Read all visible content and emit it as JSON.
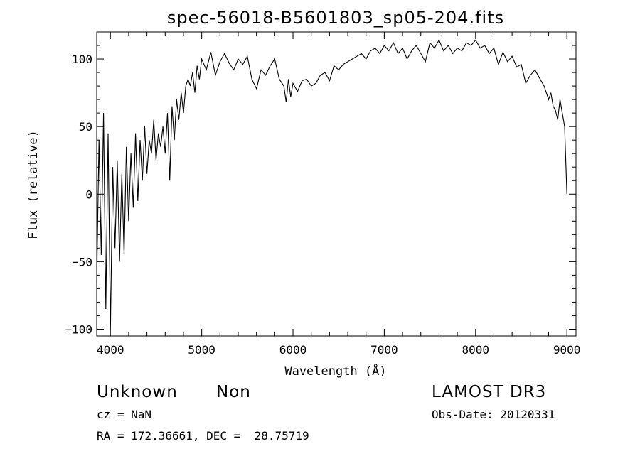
{
  "chart_data": {
    "type": "line",
    "title": "spec-56018-B5601803_sp05-204.fits",
    "xlabel": "Wavelength (Å)",
    "ylabel": "Flux (relative)",
    "xlim": [
      3850,
      9100
    ],
    "ylim": [
      -105,
      120
    ],
    "xticks": [
      4000,
      5000,
      6000,
      7000,
      8000,
      9000
    ],
    "yticks": [
      -100,
      -50,
      0,
      50,
      100
    ],
    "grid": false,
    "line_color": "#000000",
    "series": [
      {
        "x": [
          3850,
          3875,
          3900,
          3925,
          3950,
          3975,
          4000,
          4025,
          4050,
          4075,
          4100,
          4125,
          4150,
          4175,
          4200,
          4225,
          4250,
          4275,
          4300,
          4325,
          4350,
          4375,
          4400,
          4425,
          4450,
          4475,
          4500,
          4525,
          4550,
          4575,
          4600,
          4625,
          4650,
          4675,
          4700,
          4725,
          4750,
          4775,
          4800,
          4825,
          4850,
          4875,
          4900,
          4925,
          4950,
          4975,
          5000,
          5050,
          5100,
          5150,
          5200,
          5250,
          5300,
          5350,
          5400,
          5450,
          5500,
          5550,
          5600,
          5650,
          5700,
          5750,
          5800,
          5850,
          5900,
          5925,
          5950,
          5975,
          6000,
          6050,
          6100,
          6150,
          6200,
          6250,
          6300,
          6350,
          6400,
          6450,
          6500,
          6550,
          6600,
          6650,
          6700,
          6750,
          6800,
          6850,
          6900,
          6950,
          7000,
          7050,
          7100,
          7150,
          7200,
          7250,
          7300,
          7350,
          7400,
          7450,
          7500,
          7550,
          7600,
          7650,
          7700,
          7750,
          7800,
          7850,
          7900,
          7950,
          8000,
          8050,
          8100,
          8150,
          8200,
          8250,
          8300,
          8350,
          8400,
          8450,
          8500,
          8550,
          8600,
          8650,
          8700,
          8750,
          8800,
          8825,
          8850,
          8875,
          8900,
          8925,
          8950,
          8975,
          9000
        ],
        "y": [
          -65,
          40,
          -45,
          60,
          -85,
          45,
          -100,
          20,
          -40,
          25,
          -50,
          15,
          -45,
          35,
          -20,
          30,
          -10,
          45,
          -5,
          40,
          10,
          50,
          15,
          40,
          30,
          55,
          25,
          45,
          35,
          50,
          30,
          60,
          10,
          65,
          40,
          70,
          55,
          75,
          60,
          80,
          85,
          80,
          90,
          75,
          95,
          85,
          100,
          92,
          105,
          88,
          98,
          104,
          97,
          92,
          100,
          96,
          102,
          85,
          78,
          92,
          88,
          95,
          100,
          85,
          80,
          68,
          85,
          72,
          82,
          76,
          84,
          85,
          80,
          82,
          88,
          90,
          84,
          95,
          92,
          96,
          98,
          100,
          102,
          104,
          100,
          106,
          108,
          104,
          110,
          106,
          112,
          104,
          108,
          100,
          106,
          110,
          104,
          98,
          112,
          108,
          114,
          106,
          110,
          104,
          108,
          106,
          112,
          110,
          114,
          108,
          110,
          104,
          108,
          96,
          105,
          98,
          102,
          94,
          96,
          82,
          88,
          92,
          86,
          80,
          70,
          75,
          65,
          62,
          55,
          70,
          60,
          50,
          0
        ]
      }
    ],
    "annotations": {
      "object_class": "Unknown",
      "object_subclass": "Non",
      "survey": "LAMOST DR3",
      "cz_line": "cz = NaN",
      "obs_date_line": "Obs-Date: 20120331",
      "coords_line": "RA = 172.36661, DEC =  28.75719"
    }
  }
}
